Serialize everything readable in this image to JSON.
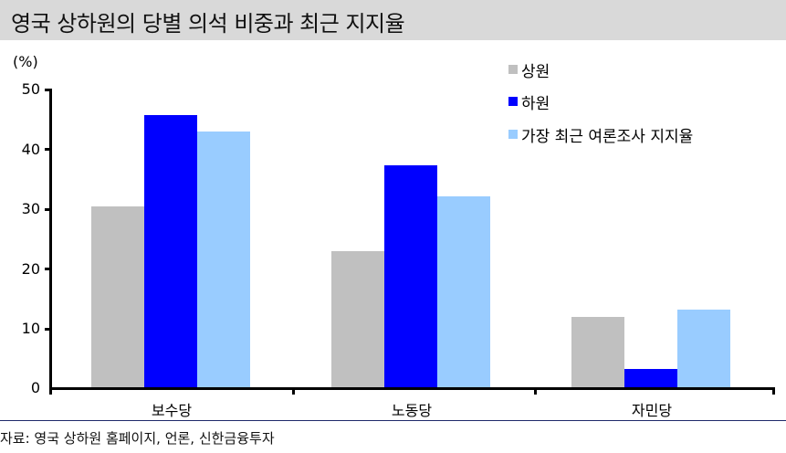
{
  "header": {
    "title": "영국 상하원의 당별 의석 비중과 최근 지지율"
  },
  "footer": {
    "source": "자료: 영국 상하원 홈페이지, 언론, 신한금융투자"
  },
  "colors": {
    "senate": "#c0c0c0",
    "house": "#0000ff",
    "poll": "#99ccff"
  },
  "chart_data": {
    "type": "bar",
    "title": "영국 상하원의 당별 의석 비중과 최근 지지율",
    "xlabel": "",
    "ylabel": "(%)",
    "ylim": [
      0,
      50
    ],
    "yticks": [
      "0",
      "10",
      "20",
      "30",
      "40",
      "50"
    ],
    "grid": false,
    "legend_position": "top-right",
    "categories": [
      "보수당",
      "노동당",
      "자민당"
    ],
    "series": [
      {
        "name": "상원",
        "color": "#c0c0c0",
        "values": [
          30.4,
          22.9,
          11.9
        ]
      },
      {
        "name": "하원",
        "color": "#0000ff",
        "values": [
          45.7,
          37.3,
          3.2
        ]
      },
      {
        "name": "가장 최근 여론조사 지지율",
        "color": "#99ccff",
        "values": [
          43.0,
          32.1,
          13.1
        ]
      }
    ]
  }
}
